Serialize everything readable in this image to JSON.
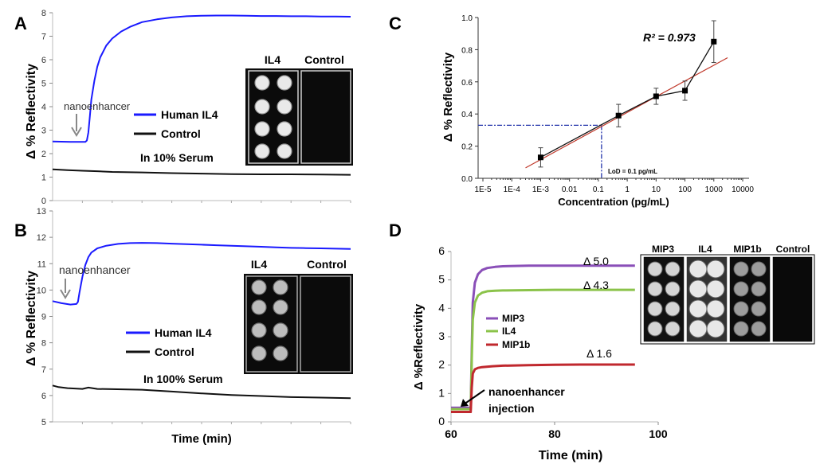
{
  "chart_data": [
    {
      "panel": "A",
      "type": "line",
      "ylabel": "Δ % Reflectivity",
      "xlabel": "",
      "ylim": [
        0,
        8
      ],
      "yticks": [
        "0",
        "1",
        "2",
        "3",
        "4",
        "5",
        "6",
        "7",
        "8"
      ],
      "xlim": [
        0,
        100
      ],
      "annotations": {
        "arrow_label": "nanoenhancer",
        "condition": "In 10% Serum"
      },
      "legend": [
        "Human IL4",
        "Control"
      ],
      "inset_labels": [
        "IL4",
        "Control"
      ],
      "series": [
        {
          "name": "Human IL4",
          "color": "#1a1aff",
          "x": [
            0,
            3,
            6,
            9,
            11,
            11.5,
            12,
            12.5,
            13,
            14,
            15,
            16,
            18,
            20,
            23,
            26,
            30,
            35,
            40,
            45,
            50,
            55,
            60,
            65,
            70,
            75,
            80,
            85,
            90,
            95,
            100
          ],
          "y": [
            2.52,
            2.51,
            2.5,
            2.5,
            2.5,
            2.56,
            2.9,
            3.6,
            4.3,
            5.1,
            5.7,
            6.1,
            6.6,
            6.9,
            7.2,
            7.4,
            7.6,
            7.72,
            7.8,
            7.85,
            7.87,
            7.88,
            7.88,
            7.87,
            7.86,
            7.86,
            7.85,
            7.85,
            7.84,
            7.84,
            7.83
          ]
        },
        {
          "name": "Control",
          "color": "#111111",
          "x": [
            0,
            5,
            10,
            15,
            20,
            30,
            40,
            50,
            60,
            70,
            80,
            90,
            100
          ],
          "y": [
            1.33,
            1.3,
            1.27,
            1.25,
            1.22,
            1.2,
            1.17,
            1.15,
            1.13,
            1.12,
            1.12,
            1.11,
            1.1
          ]
        }
      ]
    },
    {
      "panel": "B",
      "type": "line",
      "ylabel": "Δ % Reflectivity",
      "xlabel": "Time (min)",
      "ylim": [
        5,
        13
      ],
      "yticks": [
        "5",
        "6",
        "7",
        "8",
        "9",
        "10",
        "11",
        "12",
        "13"
      ],
      "xlim": [
        0,
        100
      ],
      "annotations": {
        "arrow_label": "nanoenhancer",
        "condition": "In 100% Serum"
      },
      "legend": [
        "Human IL4",
        "Control"
      ],
      "inset_labels": [
        "IL4",
        "Control"
      ],
      "series": [
        {
          "name": "Human IL4",
          "color": "#1a1aff",
          "x": [
            0,
            3,
            6,
            8,
            8.5,
            9,
            10,
            11,
            12,
            13,
            15,
            18,
            22,
            26,
            30,
            35,
            40,
            45,
            50,
            55,
            60,
            65,
            70,
            75,
            80,
            85,
            90,
            95,
            100
          ],
          "y": [
            9.58,
            9.5,
            9.45,
            9.47,
            9.55,
            9.9,
            10.5,
            10.95,
            11.25,
            11.42,
            11.58,
            11.68,
            11.75,
            11.78,
            11.79,
            11.78,
            11.76,
            11.74,
            11.72,
            11.7,
            11.68,
            11.66,
            11.64,
            11.62,
            11.6,
            11.59,
            11.58,
            11.57,
            11.56
          ]
        },
        {
          "name": "Control",
          "color": "#111111",
          "x": [
            0,
            2,
            5,
            10,
            12,
            15,
            20,
            30,
            40,
            50,
            60,
            70,
            80,
            90,
            100
          ],
          "y": [
            6.38,
            6.32,
            6.28,
            6.25,
            6.3,
            6.25,
            6.24,
            6.22,
            6.15,
            6.08,
            6.02,
            5.98,
            5.94,
            5.92,
            5.9
          ]
        }
      ]
    },
    {
      "panel": "C",
      "type": "scatter",
      "xlabel": "Concentration (pg/mL)",
      "ylabel": "Δ % Reflectivity",
      "xscale": "log",
      "xticks": [
        "1E-5",
        "1E-4",
        "1E-3",
        "0.01",
        "0.1",
        "1",
        "10",
        "100",
        "1000",
        "10000"
      ],
      "yticks": [
        "0.0",
        "0.2",
        "0.4",
        "0.6",
        "0.8",
        "1.0"
      ],
      "ylim": [
        0,
        1.0
      ],
      "annotations": {
        "r2": "R² = 0.973",
        "lod": "LoD = 0.1 pg/mL"
      },
      "points": [
        {
          "x": 0.001,
          "y": 0.13,
          "err": 0.06
        },
        {
          "x": 0.5,
          "y": 0.39,
          "err": 0.07
        },
        {
          "x": 10,
          "y": 0.51,
          "err": 0.05
        },
        {
          "x": 100,
          "y": 0.545,
          "err": 0.06
        },
        {
          "x": 1000,
          "y": 0.85,
          "err": 0.13
        }
      ],
      "fit_line": {
        "x": [
          0.0003,
          3000
        ],
        "y": [
          0.065,
          0.75
        ]
      },
      "lod_line": {
        "x": 0.1,
        "y": 0.33
      }
    },
    {
      "panel": "D",
      "type": "line",
      "xlabel": "Time (min)",
      "ylabel": "Δ %Reflectivity",
      "xlim": [
        60,
        100
      ],
      "ylim": [
        0,
        6
      ],
      "xticks": [
        "60",
        "80",
        "100"
      ],
      "yticks": [
        "0",
        "1",
        "2",
        "3",
        "4",
        "5",
        "6"
      ],
      "annotations": {
        "arrow_label_1": "nanoenhancer",
        "arrow_label_2": "injection",
        "d_mip3": "Δ 5.0",
        "d_il4": "Δ 4.3",
        "d_mip1b": "Δ 1.6"
      },
      "legend": [
        "MIP3",
        "IL4",
        "MIP1b"
      ],
      "inset_labels": [
        "MIP3",
        "IL4",
        "MIP1b",
        "Control"
      ],
      "series": [
        {
          "name": "MIP3",
          "color": "#8a4fb8",
          "x": [
            60,
            62,
            63.8,
            64.0,
            64.2,
            64.6,
            65.2,
            66,
            67,
            68.5,
            70,
            75,
            80,
            85,
            90,
            95.5
          ],
          "y": [
            0.5,
            0.5,
            0.5,
            2.5,
            4.2,
            4.9,
            5.2,
            5.35,
            5.42,
            5.46,
            5.48,
            5.5,
            5.5,
            5.5,
            5.5,
            5.5
          ]
        },
        {
          "name": "IL4",
          "color": "#8bc34a",
          "x": [
            60,
            62,
            63.8,
            64.0,
            64.2,
            64.6,
            65.2,
            66,
            67,
            68.5,
            70,
            75,
            80,
            85,
            90,
            95.5
          ],
          "y": [
            0.45,
            0.45,
            0.45,
            2.2,
            3.6,
            4.2,
            4.45,
            4.55,
            4.6,
            4.62,
            4.63,
            4.64,
            4.65,
            4.65,
            4.65,
            4.65
          ]
        },
        {
          "name": "MIP1b",
          "color": "#c0282e",
          "x": [
            60,
            62,
            63.8,
            64.0,
            64.2,
            64.6,
            65.2,
            66,
            68,
            70,
            75,
            80,
            85,
            90,
            95.5
          ],
          "y": [
            0.35,
            0.35,
            0.35,
            1.2,
            1.7,
            1.85,
            1.9,
            1.93,
            1.96,
            1.98,
            2.0,
            2.01,
            2.02,
            2.02,
            2.02
          ]
        }
      ]
    }
  ],
  "panels": {
    "a": "A",
    "b": "B",
    "c": "C",
    "d": "D"
  }
}
